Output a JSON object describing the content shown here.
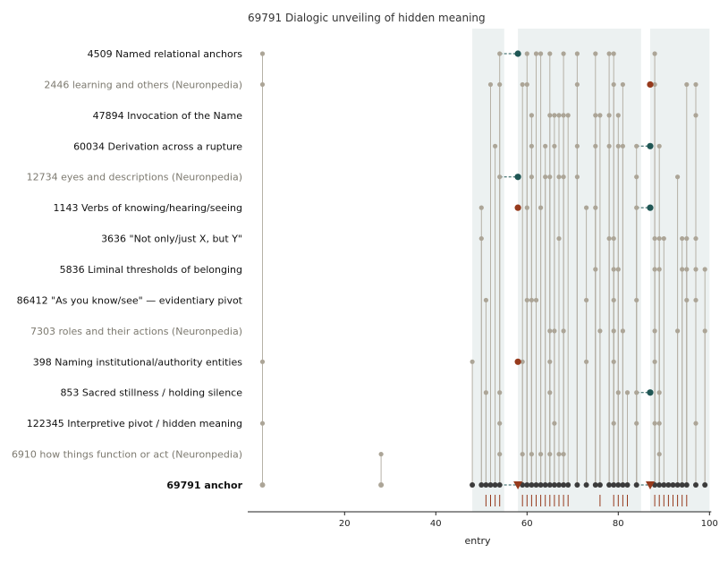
{
  "chart_data": {
    "type": "scatter",
    "title": "69791  Dialogic unveiling of hidden meaning",
    "xlabel": "entry",
    "ylabel": "",
    "xlim": [
      0,
      100
    ],
    "xticks": [
      20,
      40,
      60,
      80,
      100
    ],
    "colors": {
      "band": "#ecf1f1",
      "dot": "#aca597",
      "stem": "#b6b1a6",
      "anchor_dot": "#3b3b3b",
      "teal": "#1f5654",
      "rust": "#963a1c",
      "rug": "#963a1c",
      "label_dark": "#111111",
      "label_muted": "#7d7a70"
    },
    "bands": [
      [
        48,
        55
      ],
      [
        58,
        85
      ],
      [
        87,
        100
      ]
    ],
    "rows": [
      {
        "label": "4509  Named relational anchors",
        "style": "normal",
        "x": [
          2,
          54,
          60,
          62,
          63,
          65,
          68,
          71,
          75,
          78,
          79,
          88
        ],
        "teal": [
          58
        ],
        "rust": [],
        "stems": [
          2,
          54,
          60,
          62,
          63,
          65,
          68,
          71,
          75,
          78,
          79,
          88
        ]
      },
      {
        "label": "2446  learning and others (Neuronpedia)",
        "style": "muted",
        "x": [
          2,
          52,
          54,
          59,
          60,
          71,
          79,
          81,
          88,
          95,
          97
        ],
        "teal": [],
        "rust": [
          87
        ],
        "stems": [
          2,
          52,
          54,
          59,
          60,
          71,
          79,
          81,
          88,
          95,
          97
        ]
      },
      {
        "label": "47894  Invocation of the Name",
        "style": "normal",
        "x": [
          61,
          65,
          66,
          67,
          68,
          69,
          75,
          76,
          78,
          80,
          97
        ],
        "teal": [],
        "rust": [],
        "stems": [
          61,
          65,
          66,
          67,
          68,
          69,
          75,
          76,
          78,
          80,
          97
        ]
      },
      {
        "label": "60034  Derivation across a rupture",
        "style": "normal",
        "x": [
          53,
          61,
          64,
          66,
          71,
          75,
          78,
          80,
          81,
          84,
          89
        ],
        "teal": [
          87
        ],
        "rust": [],
        "stems": [
          53,
          61,
          64,
          66,
          71,
          75,
          78,
          80,
          81,
          84,
          89
        ]
      },
      {
        "label": "12734  eyes and descriptions (Neuronpedia)",
        "style": "muted",
        "x": [
          54,
          61,
          64,
          65,
          67,
          68,
          71,
          84,
          93
        ],
        "teal": [
          58
        ],
        "rust": [],
        "stems": [
          54,
          61,
          64,
          65,
          67,
          68,
          71,
          84,
          93
        ]
      },
      {
        "label": "1143  Verbs of knowing/hearing/seeing",
        "style": "normal",
        "x": [
          50,
          60,
          63,
          73,
          75,
          84
        ],
        "teal": [
          87
        ],
        "rust": [
          58
        ],
        "stems": [
          50,
          60,
          63,
          73,
          75,
          84
        ]
      },
      {
        "label": "3636  \"Not only/just X, but Y\"",
        "style": "normal",
        "x": [
          50,
          67,
          78,
          79,
          88,
          89,
          90,
          94,
          95,
          97
        ],
        "teal": [],
        "rust": [],
        "stems": [
          50,
          67,
          78,
          79,
          88,
          89,
          90,
          94,
          95,
          97
        ]
      },
      {
        "label": "5836  Liminal thresholds of belonging",
        "style": "normal",
        "x": [
          75,
          79,
          80,
          88,
          89,
          94,
          95,
          97,
          99
        ],
        "teal": [],
        "rust": [],
        "stems": [
          75,
          79,
          80,
          88,
          89,
          94,
          95,
          97,
          99
        ]
      },
      {
        "label": "86412  \"As you know/see\" — evidentiary pivot",
        "style": "normal",
        "x": [
          51,
          60,
          61,
          62,
          73,
          79,
          84,
          95,
          97
        ],
        "teal": [],
        "rust": [],
        "stems": [
          51,
          60,
          61,
          62,
          73,
          79,
          84,
          95,
          97
        ]
      },
      {
        "label": "7303  roles and their actions (Neuronpedia)",
        "style": "muted",
        "x": [
          65,
          66,
          68,
          76,
          79,
          81,
          88,
          93,
          99
        ],
        "teal": [],
        "rust": [],
        "stems": [
          65,
          66,
          68,
          76,
          79,
          81,
          88,
          93,
          99
        ]
      },
      {
        "label": "398  Naming institutional/authority entities",
        "style": "normal",
        "x": [
          2,
          48,
          59,
          65,
          73,
          79,
          88
        ],
        "teal": [],
        "rust": [
          58
        ],
        "stems": [
          2,
          48,
          59,
          65,
          73,
          79,
          88
        ]
      },
      {
        "label": "853  Sacred stillness / holding silence",
        "style": "normal",
        "x": [
          51,
          54,
          65,
          80,
          82,
          84,
          89
        ],
        "teal": [
          87
        ],
        "rust": [],
        "stems": [
          51,
          54,
          65,
          80,
          82,
          84,
          89
        ]
      },
      {
        "label": "122345  Interpretive pivot / hidden meaning",
        "style": "normal",
        "x": [
          2,
          54,
          66,
          79,
          84,
          88,
          89,
          97
        ],
        "teal": [],
        "rust": [],
        "stems": [
          2,
          54,
          66,
          79,
          84,
          88,
          89,
          97
        ]
      },
      {
        "label": "6910  how things function or act (Neuronpedia)",
        "style": "muted",
        "x": [
          28,
          54,
          59,
          61,
          63,
          65,
          67,
          68,
          89
        ],
        "teal": [],
        "rust": [],
        "stems": [
          54,
          59,
          61,
          63,
          65,
          67,
          68,
          89
        ]
      },
      {
        "label": "69791  anchor",
        "style": "bold",
        "x": [],
        "teal": [],
        "rust": [],
        "stems": []
      }
    ],
    "anchor": {
      "gray": [
        2,
        28
      ],
      "dark": [
        48,
        50,
        51,
        52,
        53,
        54,
        59,
        60,
        61,
        62,
        63,
        64,
        65,
        66,
        67,
        68,
        69,
        71,
        73,
        75,
        76,
        78,
        79,
        80,
        81,
        82,
        84,
        88,
        89,
        90,
        91,
        92,
        93,
        94,
        95,
        97,
        99
      ],
      "rust_triangles": [
        58,
        87
      ]
    },
    "rug": [
      51,
      52,
      53,
      54,
      59,
      60,
      61,
      62,
      63,
      64,
      65,
      66,
      67,
      68,
      69,
      76,
      79,
      80,
      81,
      82,
      88,
      89,
      90,
      91,
      92,
      93,
      94,
      95
    ],
    "links": [
      {
        "row": 0,
        "from": 54,
        "to": 58
      },
      {
        "row": 3,
        "from": 84,
        "to": 87
      },
      {
        "row": 4,
        "from": 54,
        "to": 58
      },
      {
        "row": 5,
        "from": 84,
        "to": 87
      },
      {
        "row": 11,
        "from": 84,
        "to": 87
      },
      {
        "row": 14,
        "from": 54,
        "to": 58
      },
      {
        "row": 14,
        "from": 84,
        "to": 87
      }
    ]
  }
}
